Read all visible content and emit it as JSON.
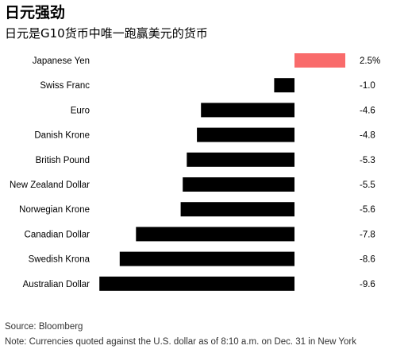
{
  "title": "日元强劲",
  "subtitle": "日元是G10货币中唯一跑赢美元的货币",
  "source": "Source: Bloomberg",
  "note": "Note: Currencies quoted against the U.S. dollar as of 8:10 a.m. on Dec. 31 in New York",
  "colors": {
    "positive": "#f96b6b",
    "negative": "#000000"
  },
  "chart_data": {
    "type": "bar",
    "orientation": "horizontal",
    "categories": [
      "Japanese Yen",
      "Swiss Franc",
      "Euro",
      "Danish Krone",
      "British Pound",
      "New Zealand Dollar",
      "Norwegian Krone",
      "Canadian Dollar",
      "Swedish Krona",
      "Australian Dollar"
    ],
    "values": [
      2.5,
      -1.0,
      -4.6,
      -4.8,
      -5.3,
      -5.5,
      -5.6,
      -7.8,
      -8.6,
      -9.6
    ],
    "value_labels": [
      "2.5%",
      "-1.0",
      "-4.6",
      "-4.8",
      "-5.3",
      "-5.5",
      "-5.6",
      "-7.8",
      "-8.6",
      "-9.6"
    ],
    "xlim": [
      -9.6,
      2.5
    ],
    "grid": false,
    "legend": "none"
  }
}
